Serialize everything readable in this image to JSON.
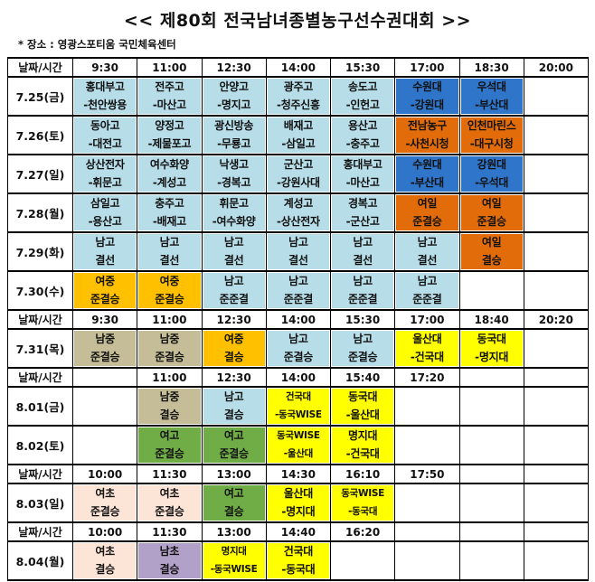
{
  "title": "<< 제80회 전국남녀종별농구선수권대회 >>",
  "venue": "* 장소 : 영광스포티움 국민체육센터",
  "colors": {
    "lightblue": "#b7dde8",
    "blue": "#2f75c9",
    "orange": "#e26b0a",
    "gold": "#ffc000",
    "tan": "#c4bd97",
    "yellow": "#ffff00",
    "green": "#70ad47",
    "peach": "#fce4d6",
    "purple": "#b1a0c7"
  },
  "rows": [
    {
      "type": "header",
      "label": "날짜/시간",
      "times": [
        "9:30",
        "11:00",
        "12:30",
        "14:00",
        "15:30",
        "17:00",
        "18:30",
        "20:00"
      ]
    },
    {
      "type": "day",
      "date": "7.25(금)",
      "cells": [
        {
          "lines": [
            "홍대부고",
            "-천안쌍용"
          ],
          "color": "lightblue"
        },
        {
          "lines": [
            "전주고",
            "-마산고"
          ],
          "color": "lightblue"
        },
        {
          "lines": [
            "안양고",
            "-명지고"
          ],
          "color": "lightblue"
        },
        {
          "lines": [
            "광주고",
            "-청주신흥"
          ],
          "color": "lightblue"
        },
        {
          "lines": [
            "송도고",
            "-인헌고"
          ],
          "color": "lightblue"
        },
        {
          "lines": [
            "수원대",
            "-강원대"
          ],
          "color": "blue"
        },
        {
          "lines": [
            "우석대",
            "-부산대"
          ],
          "color": "blue"
        },
        null
      ]
    },
    {
      "type": "day",
      "date": "7.26(토)",
      "cells": [
        {
          "lines": [
            "동아고",
            "-대전고"
          ],
          "color": "lightblue"
        },
        {
          "lines": [
            "양정고",
            "-제물포고"
          ],
          "color": "lightblue"
        },
        {
          "lines": [
            "광신방송",
            "-무룡고"
          ],
          "color": "lightblue"
        },
        {
          "lines": [
            "배재고",
            "-삼일고"
          ],
          "color": "lightblue"
        },
        {
          "lines": [
            "용산고",
            "-충주고"
          ],
          "color": "lightblue"
        },
        {
          "lines": [
            "전남농구",
            "-사천시청"
          ],
          "color": "orange"
        },
        {
          "lines": [
            "인천마린스",
            "-대구시청"
          ],
          "color": "orange"
        },
        null
      ]
    },
    {
      "type": "day",
      "date": "7.27(일)",
      "cells": [
        {
          "lines": [
            "상산전자",
            "-휘문고"
          ],
          "color": "lightblue"
        },
        {
          "lines": [
            "여수화양",
            "-계성고"
          ],
          "color": "lightblue"
        },
        {
          "lines": [
            "낙생고",
            "-경복고"
          ],
          "color": "lightblue"
        },
        {
          "lines": [
            "군산고",
            "-강원사대"
          ],
          "color": "lightblue"
        },
        {
          "lines": [
            "홍대부고",
            "-마산고"
          ],
          "color": "lightblue"
        },
        {
          "lines": [
            "수원대",
            "-부산대"
          ],
          "color": "blue"
        },
        {
          "lines": [
            "강원대",
            "-우석대"
          ],
          "color": "blue"
        },
        null
      ]
    },
    {
      "type": "day",
      "date": "7.28(월)",
      "cells": [
        {
          "lines": [
            "삼일고",
            "-용산고"
          ],
          "color": "lightblue"
        },
        {
          "lines": [
            "충주고",
            "-배재고"
          ],
          "color": "lightblue"
        },
        {
          "lines": [
            "휘문고",
            "-여수화양"
          ],
          "color": "lightblue"
        },
        {
          "lines": [
            "계성고",
            "-상산전자"
          ],
          "color": "lightblue"
        },
        {
          "lines": [
            "경복고",
            "-군산고"
          ],
          "color": "lightblue"
        },
        {
          "lines": [
            "여일",
            "준결승"
          ],
          "color": "orange"
        },
        {
          "lines": [
            "여일",
            "준결승"
          ],
          "color": "orange"
        },
        null
      ]
    },
    {
      "type": "day",
      "date": "7.29(화)",
      "cells": [
        {
          "lines": [
            "남고",
            "결선"
          ],
          "color": "lightblue"
        },
        {
          "lines": [
            "남고",
            "결선"
          ],
          "color": "lightblue"
        },
        {
          "lines": [
            "남고",
            "결선"
          ],
          "color": "lightblue"
        },
        {
          "lines": [
            "남고",
            "결선"
          ],
          "color": "lightblue"
        },
        {
          "lines": [
            "남고",
            "결선"
          ],
          "color": "lightblue"
        },
        {
          "lines": [
            "남고",
            "결선"
          ],
          "color": "lightblue"
        },
        {
          "lines": [
            "여일",
            "결승"
          ],
          "color": "orange"
        },
        null
      ]
    },
    {
      "type": "day",
      "date": "7.30(수)",
      "cells": [
        {
          "lines": [
            "여중",
            "준결승"
          ],
          "color": "gold"
        },
        {
          "lines": [
            "여중",
            "준결승"
          ],
          "color": "gold"
        },
        {
          "lines": [
            "남고",
            "준준결"
          ],
          "color": "lightblue"
        },
        {
          "lines": [
            "남고",
            "준준결"
          ],
          "color": "lightblue"
        },
        {
          "lines": [
            "남고",
            "준준결"
          ],
          "color": "lightblue"
        },
        {
          "lines": [
            "남고",
            "준준결"
          ],
          "color": "lightblue"
        },
        null,
        null
      ]
    },
    {
      "type": "header",
      "label": "날짜/시간",
      "times": [
        "9:30",
        "11:00",
        "12:30",
        "14:00",
        "15:30",
        "17:00",
        "18:40",
        "20:20"
      ]
    },
    {
      "type": "day",
      "date": "7.31(목)",
      "cells": [
        {
          "lines": [
            "남중",
            "준결승"
          ],
          "color": "tan"
        },
        {
          "lines": [
            "남중",
            "준결승"
          ],
          "color": "tan"
        },
        {
          "lines": [
            "여중",
            "결승"
          ],
          "color": "gold"
        },
        {
          "lines": [
            "남고",
            "준결승"
          ],
          "color": "lightblue"
        },
        {
          "lines": [
            "남고",
            "준결승"
          ],
          "color": "lightblue"
        },
        {
          "lines": [
            "울산대",
            "-건국대"
          ],
          "color": "yellow"
        },
        {
          "lines": [
            "동국대",
            "-명지대"
          ],
          "color": "yellow"
        },
        null
      ]
    },
    {
      "type": "header",
      "label": "날짜/시간",
      "times": [
        "",
        "11:00",
        "12:30",
        "14:00",
        "15:40",
        "17:20",
        "",
        ""
      ]
    },
    {
      "type": "day",
      "date": "8.01(금)",
      "cells": [
        null,
        {
          "lines": [
            "남중",
            "결승"
          ],
          "color": "tan"
        },
        {
          "lines": [
            "남고",
            "결승"
          ],
          "color": "lightblue"
        },
        {
          "lines": [
            "건국대",
            "-동국WISE"
          ],
          "color": "yellow"
        },
        {
          "lines": [
            "동국대",
            "-울산대"
          ],
          "color": "yellow"
        },
        null,
        null,
        null
      ]
    },
    {
      "type": "day",
      "date": "8.02(토)",
      "cells": [
        null,
        {
          "lines": [
            "여고",
            "준결승"
          ],
          "color": "green"
        },
        {
          "lines": [
            "여고",
            "준결승"
          ],
          "color": "green"
        },
        {
          "lines": [
            "동국WISE",
            "-울산대"
          ],
          "color": "yellow"
        },
        {
          "lines": [
            "명지대",
            "-건국대"
          ],
          "color": "yellow"
        },
        null,
        null,
        null
      ]
    },
    {
      "type": "header",
      "label": "날짜/시간",
      "times": [
        "10:00",
        "11:30",
        "13:00",
        "14:30",
        "16:10",
        "17:50",
        "",
        ""
      ]
    },
    {
      "type": "day",
      "date": "8.03(일)",
      "cells": [
        {
          "lines": [
            "여초",
            "준결승"
          ],
          "color": "peach"
        },
        {
          "lines": [
            "여초",
            "준결승"
          ],
          "color": "peach"
        },
        {
          "lines": [
            "여고",
            "결승"
          ],
          "color": "green"
        },
        {
          "lines": [
            "울산대",
            "-명지대"
          ],
          "color": "yellow"
        },
        {
          "lines": [
            "동국WISE",
            "-동국대"
          ],
          "color": "yellow"
        },
        null,
        null,
        null
      ]
    },
    {
      "type": "header",
      "label": "날짜/시간",
      "times": [
        "10:00",
        "11:30",
        "13:00",
        "14:40",
        "16:20",
        "",
        "",
        ""
      ]
    },
    {
      "type": "day",
      "date": "8.04(월)",
      "cells": [
        {
          "lines": [
            "여초",
            "결승"
          ],
          "color": "peach"
        },
        {
          "lines": [
            "남초",
            "결승"
          ],
          "color": "purple"
        },
        {
          "lines": [
            "명지대",
            "-동국WISE"
          ],
          "color": "yellow"
        },
        {
          "lines": [
            "건국대",
            "-동국대"
          ],
          "color": "yellow"
        },
        null,
        null,
        null,
        null
      ]
    }
  ]
}
